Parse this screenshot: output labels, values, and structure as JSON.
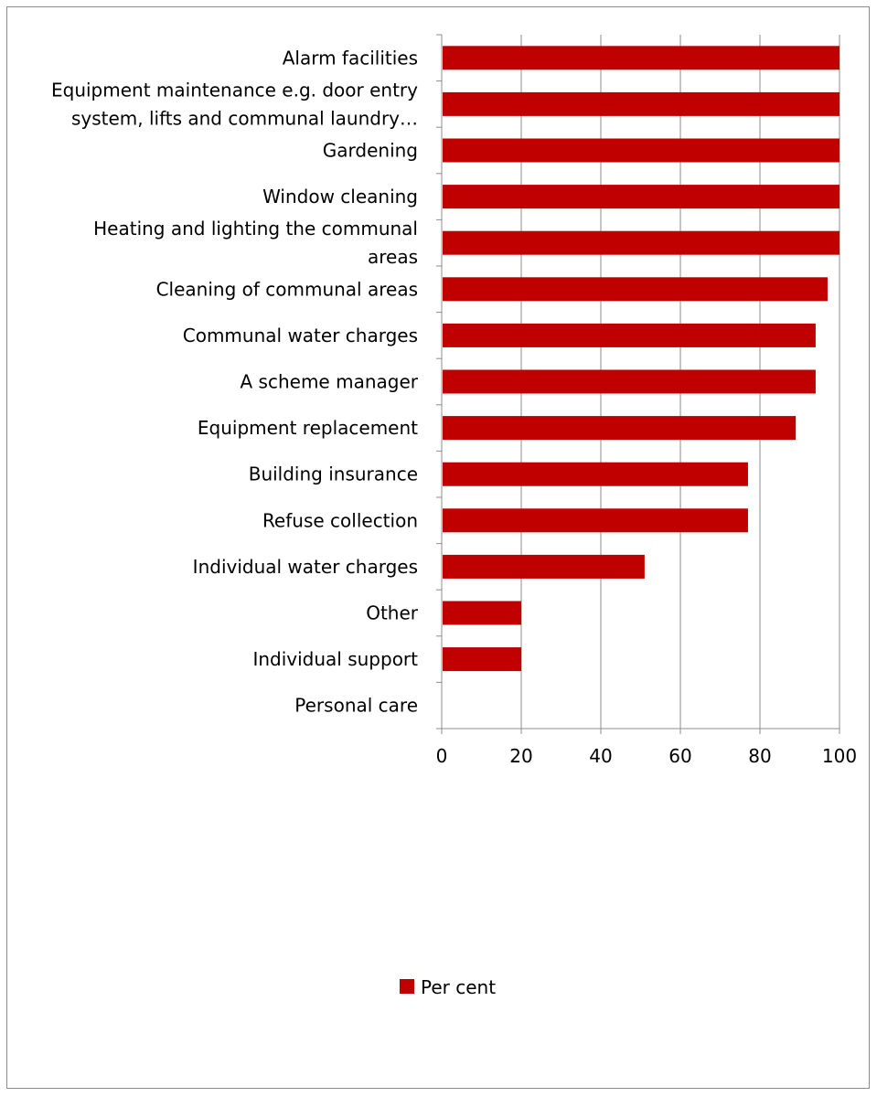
{
  "chart_data": {
    "type": "bar",
    "orientation": "horizontal",
    "title": "",
    "xlabel": "",
    "ylabel": "",
    "categories": [
      [
        "Alarm facilities"
      ],
      [
        "Equipment maintenance e.g. door entry",
        "system, lifts and communal laundry…"
      ],
      [
        "Gardening"
      ],
      [
        "Window cleaning"
      ],
      [
        "Heating and lighting the communal",
        "areas"
      ],
      [
        "Cleaning of communal areas"
      ],
      [
        "Communal water charges"
      ],
      [
        "A scheme manager"
      ],
      [
        "Equipment replacement"
      ],
      [
        "Building insurance"
      ],
      [
        "Refuse collection"
      ],
      [
        "Individual water charges"
      ],
      [
        "Other"
      ],
      [
        "Individual support"
      ],
      [
        "Personal care"
      ]
    ],
    "series": [
      {
        "name": "Per cent",
        "color": "#c00000",
        "values": [
          100,
          100,
          100,
          100,
          100,
          97,
          94,
          94,
          89,
          77,
          77,
          51,
          20,
          20,
          0
        ]
      }
    ],
    "xlim": [
      0,
      100
    ],
    "xticks": [
      0,
      20,
      40,
      60,
      80,
      100
    ],
    "grid": true,
    "legend": "bottom"
  }
}
